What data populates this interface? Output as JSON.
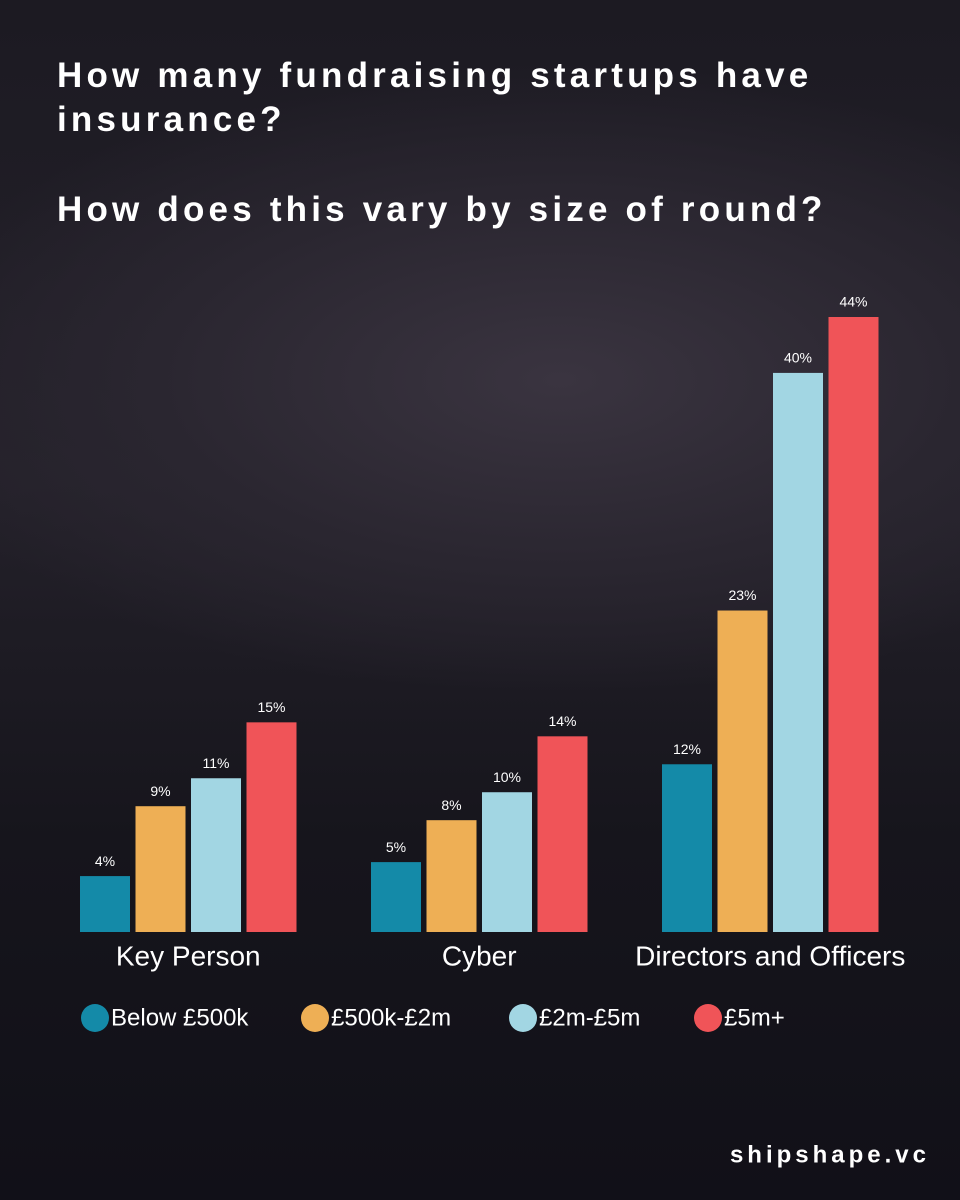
{
  "chart_data": {
    "type": "bar",
    "title": "How many fundraising startups have insurance?",
    "subtitle": "How does this vary by size of round?",
    "categories": [
      "Key Person",
      "Cyber",
      "Directors and Officers"
    ],
    "series": [
      {
        "name": "Below £500k",
        "color": "#148aa8",
        "values": [
          4,
          5,
          12
        ],
        "value_labels": [
          "4%",
          "5%",
          "12%"
        ]
      },
      {
        "name": "£500k-£2m",
        "color": "#eeaf55",
        "values": [
          9,
          8,
          23
        ],
        "value_labels": [
          "9%",
          "8%",
          "23%"
        ]
      },
      {
        "name": "£2m-£5m",
        "color": "#a2d6e3",
        "values": [
          11,
          10,
          40
        ],
        "value_labels": [
          "11%",
          "10%",
          "40%"
        ]
      },
      {
        "name": "£5m+",
        "color": "#f05458",
        "values": [
          15,
          14,
          44
        ],
        "value_labels": [
          "15%",
          "14%",
          "44%"
        ]
      }
    ],
    "footer": "shipshape.vc"
  }
}
